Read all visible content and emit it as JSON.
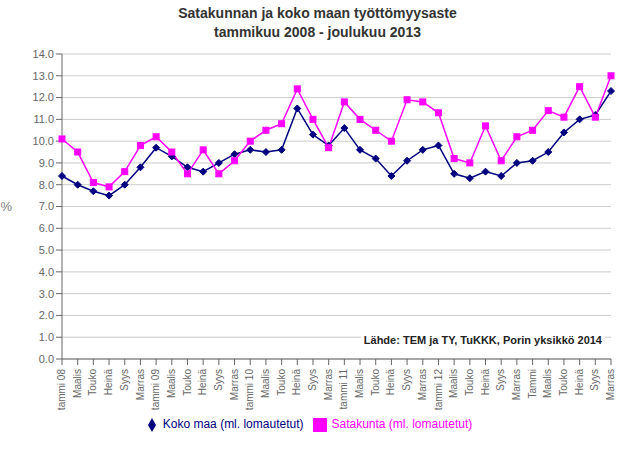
{
  "chart_data": {
    "type": "line",
    "title": "Satakunnan ja koko maan työttömyysaste\ntammikuu 2008 - joulukuu 2013",
    "y_label": "%",
    "annotation": "Lähde: TEM ja TY, TuKKK, Porin yksikkö 2014",
    "categories": [
      "tammi 08",
      "Maalis",
      "Touko",
      "Heinä",
      "Syys",
      "Marras",
      "tammi 09",
      "Maalis",
      "Touko",
      "Heinä",
      "Syys",
      "Marras",
      "tammi 10",
      "Maalis",
      "Touko",
      "Heinä",
      "Syys",
      "Marras",
      "tammi 11",
      "Maalis",
      "Touko",
      "Heinä",
      "Syys",
      "Marras",
      "tammi 12",
      "Maalis",
      "Touko",
      "Heinä",
      "Syys",
      "Marras",
      "Tammi",
      "Maalis",
      "Touko",
      "Heinä",
      "Syys",
      "Marras"
    ],
    "series": [
      {
        "name": "Koko maa (ml. lomautetut)",
        "color": "#000080",
        "marker": "diamond",
        "values": [
          8.4,
          8.0,
          7.7,
          7.5,
          8.0,
          8.8,
          9.7,
          9.3,
          8.8,
          8.6,
          9.0,
          9.4,
          9.6,
          9.5,
          9.6,
          11.5,
          10.3,
          9.8,
          10.6,
          9.6,
          9.2,
          8.4,
          9.1,
          9.6,
          9.8,
          8.5,
          8.3,
          8.6,
          8.4,
          9.0,
          9.1,
          9.5,
          10.4,
          11.0,
          11.2,
          12.3
        ]
      },
      {
        "name": "Satakunta (ml. lomautetut)",
        "color": "#ff00ff",
        "marker": "square",
        "values": [
          10.1,
          9.5,
          8.1,
          7.9,
          8.6,
          9.8,
          10.2,
          9.5,
          8.5,
          9.6,
          8.5,
          9.1,
          10.0,
          10.5,
          10.8,
          12.4,
          11.0,
          9.7,
          11.8,
          11.0,
          10.5,
          10.0,
          11.9,
          11.8,
          11.3,
          9.2,
          9.0,
          10.7,
          9.1,
          10.2,
          10.5,
          11.4,
          11.1,
          12.5,
          11.1,
          13.0
        ]
      }
    ],
    "ylim": [
      0.0,
      14.0
    ],
    "yticks": [
      {
        "value": 0,
        "label": "0.0"
      },
      {
        "value": 1,
        "label": "1.0"
      },
      {
        "value": 2,
        "label": "2.0"
      },
      {
        "value": 3,
        "label": "3.0"
      },
      {
        "value": 4,
        "label": "4.0"
      },
      {
        "value": 5,
        "label": "5.0"
      },
      {
        "value": 6,
        "label": "6.0"
      },
      {
        "value": 7,
        "label": "7.0"
      },
      {
        "value": 8,
        "label": "8.0"
      },
      {
        "value": 9,
        "label": "9.0"
      },
      {
        "value": 10,
        "label": "10.0"
      },
      {
        "value": 11,
        "label": "11.0"
      },
      {
        "value": 12,
        "label": "12.0"
      },
      {
        "value": 13,
        "label": "13.0"
      },
      {
        "value": 14,
        "label": "14.0"
      }
    ],
    "grid": true,
    "legend": "bottom"
  }
}
